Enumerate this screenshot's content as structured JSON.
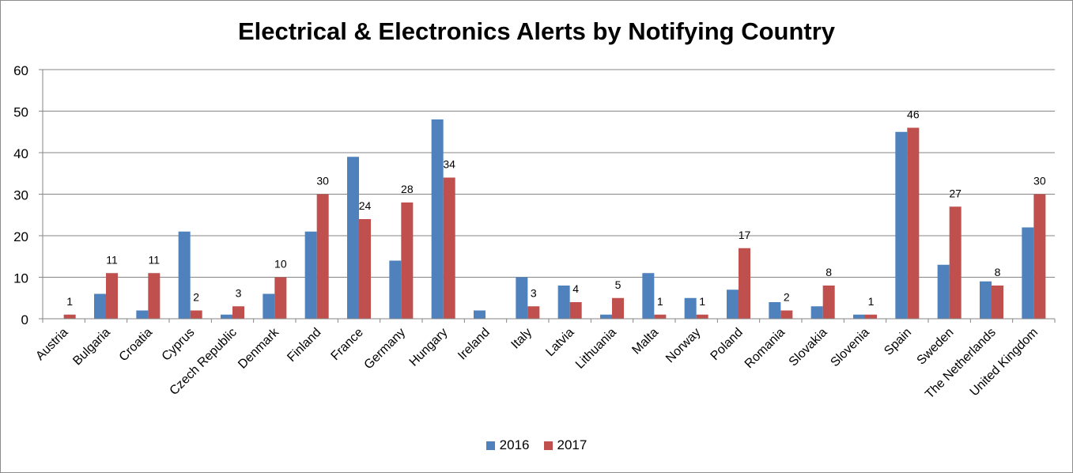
{
  "chart_data": {
    "type": "bar",
    "title": "Electrical & Electronics Alerts by Notifying Country",
    "xlabel": "",
    "ylabel": "",
    "ylim": [
      0,
      60
    ],
    "yticks": [
      0,
      10,
      20,
      30,
      40,
      50,
      60
    ],
    "grid": true,
    "legend_position": "bottom",
    "categories": [
      "Austria",
      "Bulgaria",
      "Croatia",
      "Cyprus",
      "Czech Republic",
      "Denmark",
      "Finland",
      "France",
      "Germany",
      "Hungary",
      "Ireland",
      "Italy",
      "Latvia",
      "Lithuania",
      "Malta",
      "Norway",
      "Poland",
      "Romania",
      "Slovakia",
      "Slovenia",
      "Spain",
      "Sweden",
      "The Netherlands",
      "United Kingdom"
    ],
    "series": [
      {
        "name": "2016",
        "color": "#4f81bd",
        "values": [
          0,
          6,
          2,
          21,
          1,
          6,
          21,
          39,
          14,
          48,
          2,
          10,
          8,
          1,
          11,
          5,
          7,
          4,
          3,
          1,
          45,
          13,
          9,
          22
        ],
        "data_labels": false
      },
      {
        "name": "2017",
        "color": "#c0504d",
        "values": [
          1,
          11,
          11,
          2,
          3,
          10,
          30,
          24,
          28,
          34,
          0,
          3,
          4,
          5,
          1,
          1,
          17,
          2,
          8,
          1,
          46,
          27,
          8,
          30
        ],
        "data_labels": true
      }
    ]
  }
}
